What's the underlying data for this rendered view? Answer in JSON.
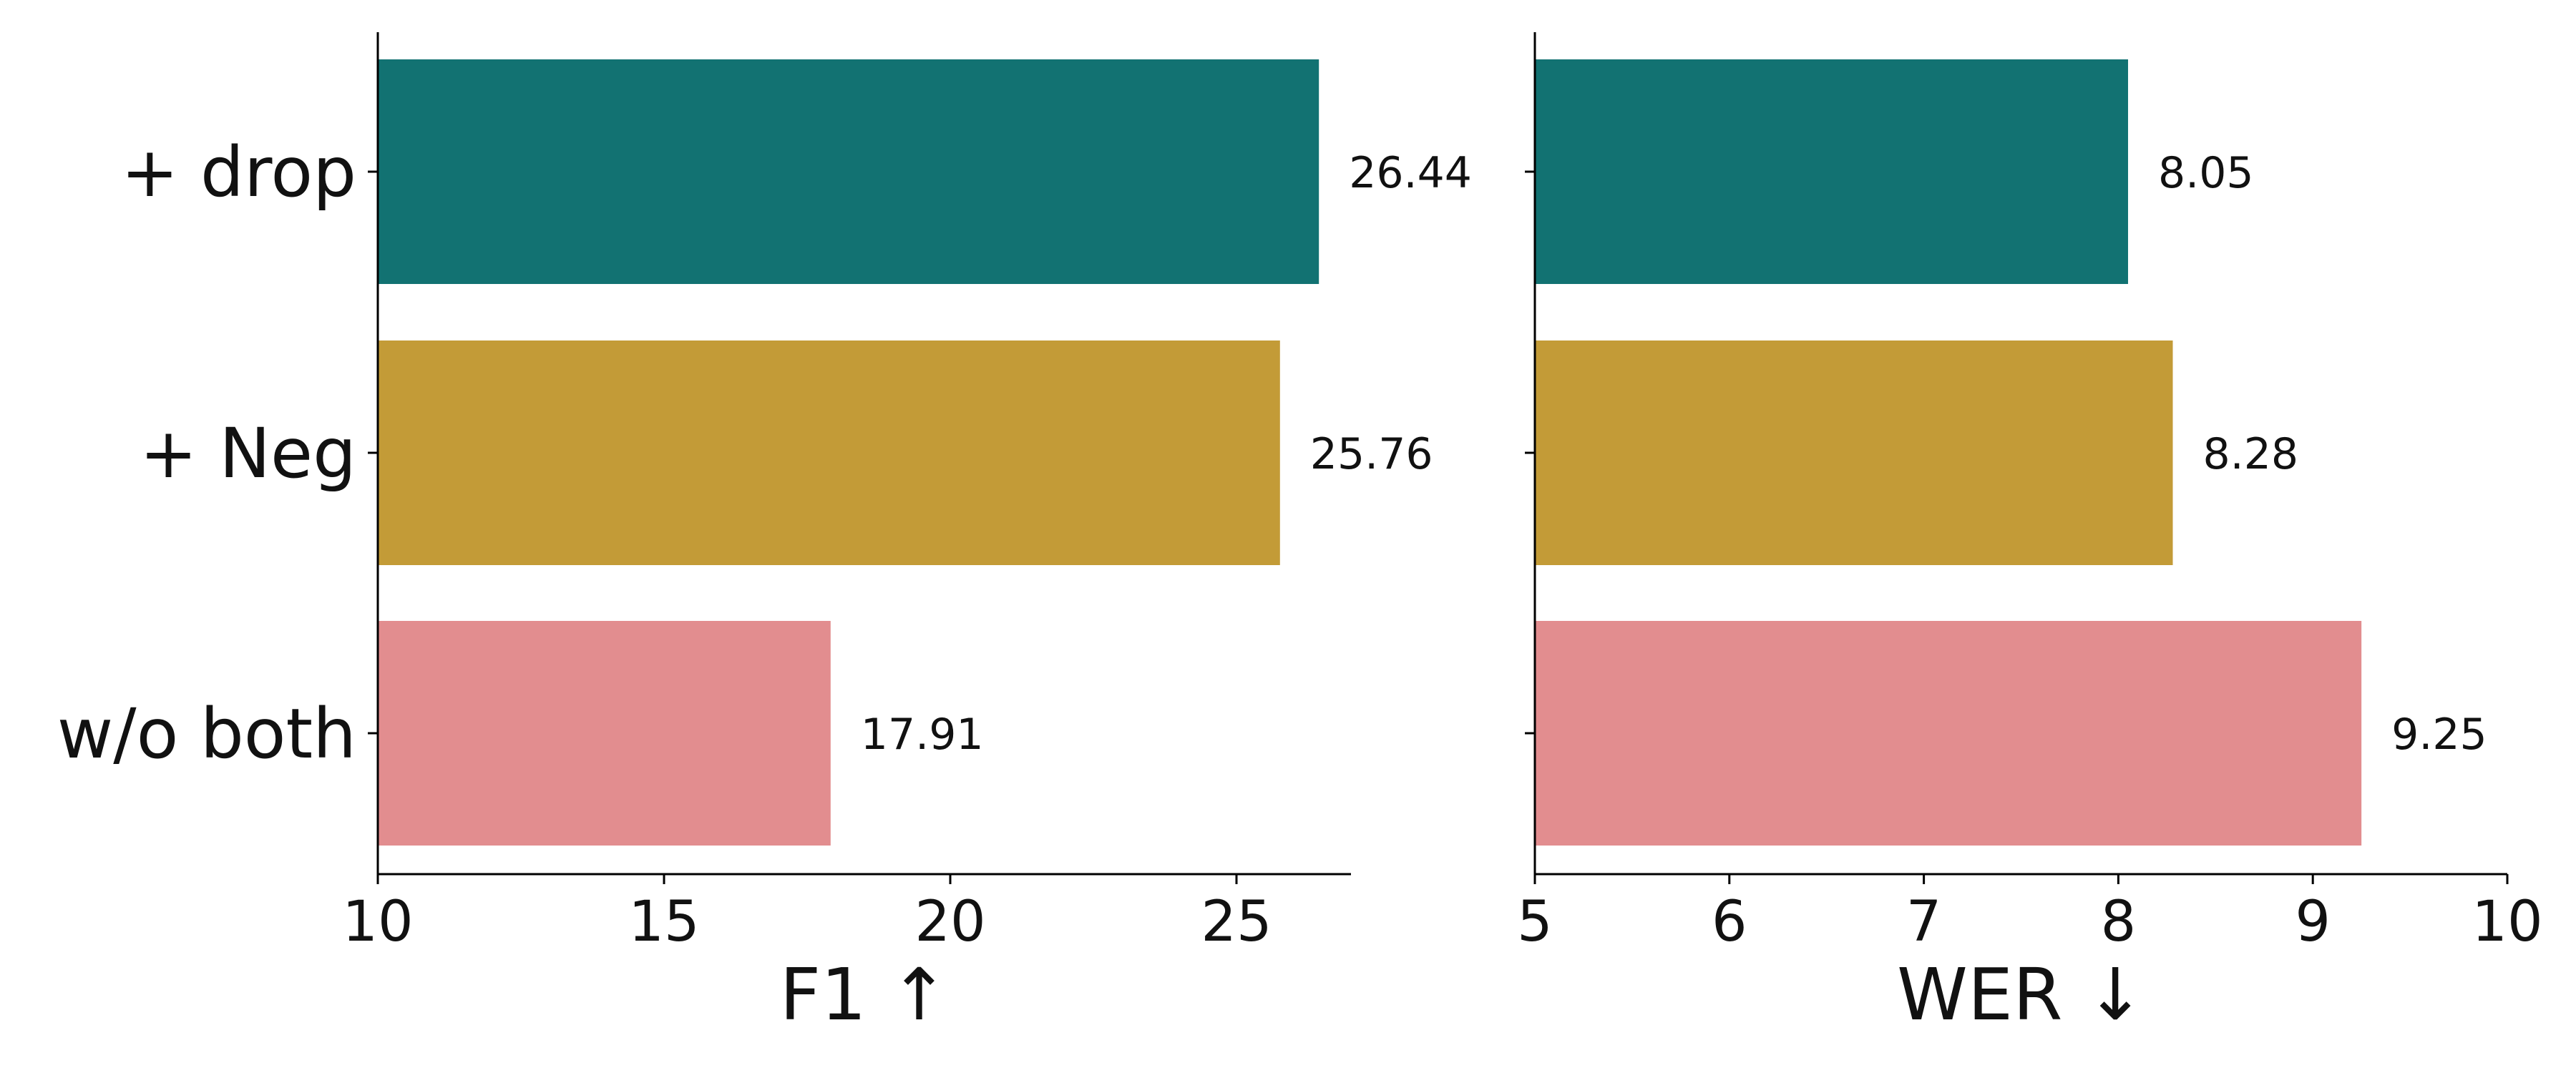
{
  "chart_data": [
    {
      "type": "bar",
      "orientation": "horizontal",
      "categories": [
        "+ drop",
        "+ Neg",
        "w/o both"
      ],
      "values": [
        26.44,
        25.76,
        17.91
      ],
      "value_labels": [
        "26.44",
        "25.76",
        "17.91"
      ],
      "colors": [
        "#127272",
        "#C39B37",
        "#E28D8F"
      ],
      "xlabel": "F1 ↑",
      "ylabel": "",
      "title": "",
      "xlim": [
        10,
        27
      ],
      "xticks": [
        "10",
        "15",
        "20",
        "25"
      ],
      "grid": false,
      "legend": false
    },
    {
      "type": "bar",
      "orientation": "horizontal",
      "categories": [
        "+ drop",
        "+ Neg",
        "w/o both"
      ],
      "values": [
        8.05,
        8.28,
        9.25
      ],
      "value_labels": [
        "8.05",
        "8.28",
        "9.25"
      ],
      "colors": [
        "#127272",
        "#C39B37",
        "#E28D8F"
      ],
      "xlabel": "WER ↓",
      "ylabel": "",
      "title": "",
      "xlim": [
        5,
        10
      ],
      "xticks": [
        "5",
        "6",
        "7",
        "8",
        "9",
        "10"
      ],
      "grid": false,
      "legend": false
    }
  ]
}
